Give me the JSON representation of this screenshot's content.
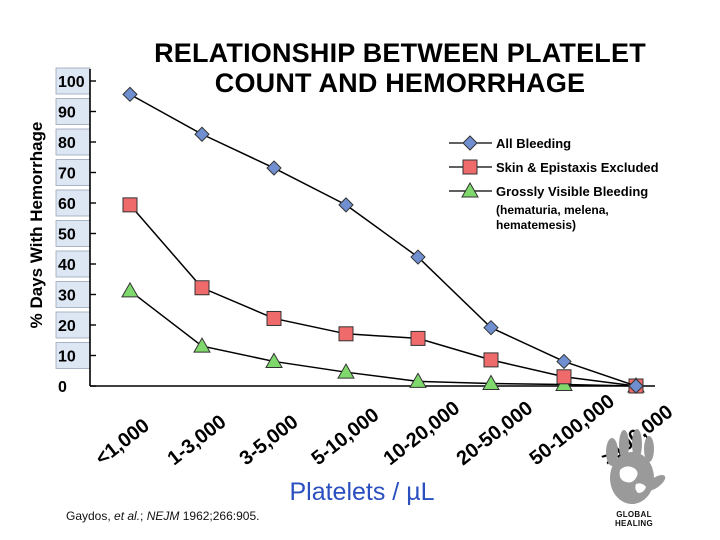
{
  "page": {
    "title_line1": "RELATIONSHIP  BETWEEN PLATELET",
    "title_line2": "COUNT AND  HEMORRHAGE",
    "citation": {
      "authors": "Gaydos, ",
      "etal": "et al.",
      "journal_sep": "; ",
      "journal": "NEJM",
      "ref": " 1962;266:905."
    },
    "logo_text": "GLOBAL HEALING"
  },
  "colors": {
    "all_bleeding": "#6f8fd0",
    "skin_epistaxis_excluded": "#ef6a6a",
    "grossly_visible": "#7fd86b",
    "tick_box_fill": "#dde6f3",
    "line": "#000000"
  },
  "chart_data": {
    "type": "line",
    "title": "RELATIONSHIP  BETWEEN PLATELET COUNT AND  HEMORRHAGE",
    "xlabel": "Platelets / µL",
    "ylabel": "% Days With Hemorrhage",
    "categories": [
      "<1,000",
      "1-3,000",
      "3-5,000",
      "5-10,000",
      "10-20,000",
      "20-50,000",
      "50-100,000",
      ">100,000"
    ],
    "y_ticks": [
      "0",
      "10",
      "20",
      "30",
      "40",
      "50",
      "60",
      "70",
      "80",
      "90",
      "100"
    ],
    "ylim": [
      0,
      100
    ],
    "grid": false,
    "legend_position": "top-right",
    "legend_note": [
      "(hematuria, melena,",
      "hematemesis)"
    ],
    "series": [
      {
        "name": "All Bleeding",
        "marker": "diamond",
        "values": [
          95,
          82,
          71,
          59,
          42,
          19,
          8,
          0
        ]
      },
      {
        "name": "Skin & Epistaxis Excluded",
        "marker": "square",
        "values": [
          59,
          32,
          22,
          17,
          15.5,
          8.5,
          3,
          0
        ]
      },
      {
        "name": "Grossly Visible Bleeding",
        "marker": "triangle",
        "values": [
          31,
          13,
          8,
          4.5,
          1.5,
          0.8,
          0.5,
          0
        ]
      }
    ]
  }
}
